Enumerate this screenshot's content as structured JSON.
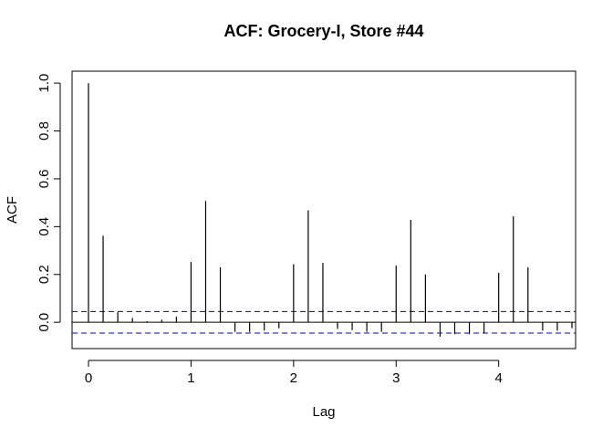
{
  "chart_data": {
    "type": "bar",
    "subtype": "acf",
    "title": "ACF: Grocery-I, Store #44",
    "xlabel": "Lag",
    "ylabel": "ACF",
    "xlim": [
      -0.16,
      4.75
    ],
    "ylim": [
      -0.11,
      1.05
    ],
    "xticks": [
      0,
      1,
      2,
      3,
      4
    ],
    "xtick_labels": [
      "0",
      "1",
      "2",
      "3",
      "4"
    ],
    "yticks": [
      0.0,
      0.2,
      0.4,
      0.6,
      0.8,
      1.0
    ],
    "ytick_labels": [
      "0.0",
      "0.2",
      "0.4",
      "0.6",
      "0.8",
      "1.0"
    ],
    "confidence_band": 0.045,
    "lag_step": 0.142857,
    "values": [
      1.0,
      0.362,
      0.043,
      0.018,
      0.005,
      0.011,
      0.023,
      0.252,
      0.507,
      0.23,
      -0.04,
      -0.04,
      -0.035,
      -0.025,
      0.243,
      0.468,
      0.248,
      -0.028,
      -0.033,
      -0.04,
      -0.04,
      0.237,
      0.428,
      0.2,
      -0.06,
      -0.05,
      -0.05,
      -0.045,
      0.207,
      0.443,
      0.23,
      -0.035,
      -0.035,
      -0.025
    ],
    "colors": {
      "bars": "#000000",
      "zero_line": "#000000",
      "confidence": "#0000cc",
      "frame": "#000000"
    }
  }
}
